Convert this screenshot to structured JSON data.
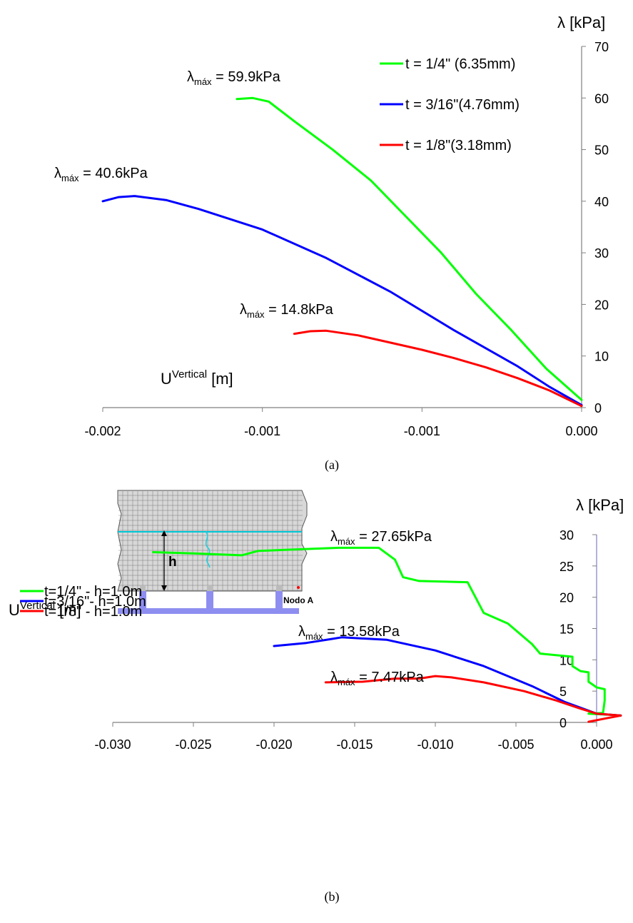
{
  "chart_data": [
    {
      "type": "line",
      "caption": "(a)",
      "ylabel": "λ [kPa]",
      "xlabel_main": "U",
      "xlabel_sup": "Vertical",
      "xlabel_unit": "[m]",
      "x_ticks": [
        "-0.002",
        "-0.001",
        "-0.001",
        "0.000"
      ],
      "y_ticks": [
        "0",
        "10",
        "20",
        "30",
        "40",
        "50",
        "60",
        "70"
      ],
      "xlim": [
        -0.0015,
        0.0
      ],
      "ylim": [
        0,
        70
      ],
      "legend_position": "top-right",
      "series": [
        {
          "name": "t = 1/4\" (6.35mm)",
          "color": "#00ff00",
          "points": [
            [
              -0.00108,
              59.8
            ],
            [
              -0.00103,
              60.0
            ],
            [
              -0.00098,
              59.3
            ],
            [
              -0.0009,
              55.5
            ],
            [
              -0.00078,
              50.0
            ],
            [
              -0.00066,
              44.0
            ],
            [
              -0.00055,
              37.0
            ],
            [
              -0.00044,
              30.0
            ],
            [
              -0.00033,
              22.0
            ],
            [
              -0.00022,
              15.0
            ],
            [
              -0.00011,
              7.5
            ],
            [
              0.0,
              1.5
            ]
          ]
        },
        {
          "name": "t = 3/16\"(4.76mm)",
          "color": "#0000ff",
          "points": [
            [
              -0.0015,
              40.0
            ],
            [
              -0.00145,
              40.8
            ],
            [
              -0.0014,
              41.0
            ],
            [
              -0.0013,
              40.2
            ],
            [
              -0.0012,
              38.5
            ],
            [
              -0.001,
              34.5
            ],
            [
              -0.0008,
              29.0
            ],
            [
              -0.0006,
              22.5
            ],
            [
              -0.0004,
              15.0
            ],
            [
              -0.0002,
              8.0
            ],
            [
              -0.0001,
              4.0
            ],
            [
              0.0,
              0.5
            ]
          ]
        },
        {
          "name": "t = 1/8\"(3.18mm)",
          "color": "#ff0000",
          "points": [
            [
              -0.0009,
              14.3
            ],
            [
              -0.00085,
              14.8
            ],
            [
              -0.0008,
              14.9
            ],
            [
              -0.0007,
              14.0
            ],
            [
              -0.0006,
              12.6
            ],
            [
              -0.0005,
              11.2
            ],
            [
              -0.0004,
              9.6
            ],
            [
              -0.0003,
              7.8
            ],
            [
              -0.0002,
              5.7
            ],
            [
              -0.0001,
              3.3
            ],
            [
              0.0,
              0.3
            ]
          ]
        }
      ],
      "annotations": [
        {
          "sub": "máx",
          "value": " = 59.9kPa"
        },
        {
          "sub": "máx",
          "value": " = 40.6kPa"
        },
        {
          "sub": "máx",
          "value": " = 14.8kPa"
        }
      ]
    },
    {
      "type": "line",
      "caption": "(b)",
      "ylabel": "λ [kPa]",
      "xlabel_main": "U",
      "xlabel_sup": "Vertical",
      "xlabel_unit": "[m]",
      "x_ticks": [
        "-0.030",
        "-0.025",
        "-0.020",
        "-0.015",
        "-0.010",
        "-0.005",
        "0.000"
      ],
      "y_ticks": [
        "0",
        "5",
        "10",
        "15",
        "20",
        "25",
        "30"
      ],
      "xlim": [
        -0.03,
        0.0
      ],
      "ylim": [
        0,
        30
      ],
      "legend_position": "left",
      "series": [
        {
          "name": "t=1/4\"  - h=1.0m",
          "color": "#00ff00",
          "points": [
            [
              -0.0275,
              27.2
            ],
            [
              -0.025,
              27.0
            ],
            [
              -0.022,
              26.7
            ],
            [
              -0.021,
              27.4
            ],
            [
              -0.019,
              27.6
            ],
            [
              -0.016,
              27.9
            ],
            [
              -0.0135,
              27.9
            ],
            [
              -0.0125,
              26.0
            ],
            [
              -0.012,
              23.2
            ],
            [
              -0.011,
              22.6
            ],
            [
              -0.008,
              22.4
            ],
            [
              -0.007,
              17.5
            ],
            [
              -0.0055,
              15.8
            ],
            [
              -0.004,
              12.5
            ],
            [
              -0.0035,
              11.0
            ],
            [
              -0.0015,
              10.5
            ],
            [
              -0.0015,
              9.0
            ],
            [
              -0.001,
              8.2
            ],
            [
              -0.0005,
              8.0
            ],
            [
              -0.0005,
              6.5
            ],
            [
              0.0,
              5.6
            ],
            [
              0.0005,
              5.3
            ],
            [
              0.0005,
              3.5
            ],
            [
              0.0004,
              1.5
            ],
            [
              -0.0005,
              1.4
            ],
            [
              0.001,
              1.2
            ],
            [
              0.0015,
              1.1
            ]
          ]
        },
        {
          "name": "t=3/16\"- h=1.0m",
          "color": "#0000ff",
          "points": [
            [
              -0.02,
              12.2
            ],
            [
              -0.018,
              12.7
            ],
            [
              -0.0165,
              13.3
            ],
            [
              -0.0158,
              13.6
            ],
            [
              -0.013,
              13.2
            ],
            [
              -0.01,
              11.5
            ],
            [
              -0.007,
              9.0
            ],
            [
              -0.004,
              5.8
            ],
            [
              -0.002,
              3.3
            ],
            [
              0.0,
              1.4
            ],
            [
              0.0015,
              1.1
            ]
          ]
        },
        {
          "name": "t=1/8\"  - h=1.0m",
          "color": "#ff0000",
          "points": [
            [
              -0.0168,
              6.4
            ],
            [
              -0.0145,
              6.5
            ],
            [
              -0.0125,
              7.0
            ],
            [
              -0.011,
              7.0
            ],
            [
              -0.01,
              7.4
            ],
            [
              -0.009,
              7.2
            ],
            [
              -0.007,
              6.4
            ],
            [
              -0.0045,
              5.0
            ],
            [
              -0.0025,
              3.5
            ],
            [
              -0.001,
              2.2
            ],
            [
              0.0,
              1.4
            ],
            [
              0.0015,
              1.1
            ],
            [
              0.0005,
              0.6
            ],
            [
              -0.0005,
              0.1
            ]
          ]
        }
      ],
      "annotations": [
        {
          "sub": "máx",
          "value": " = 27.65kPa"
        },
        {
          "sub": "máx",
          "value": " = 13.58kPa"
        },
        {
          "sub": "máx",
          "value": " = 7.47kPa"
        }
      ],
      "inset": {
        "label_h": "h",
        "label_node": "Nodo A"
      }
    }
  ]
}
